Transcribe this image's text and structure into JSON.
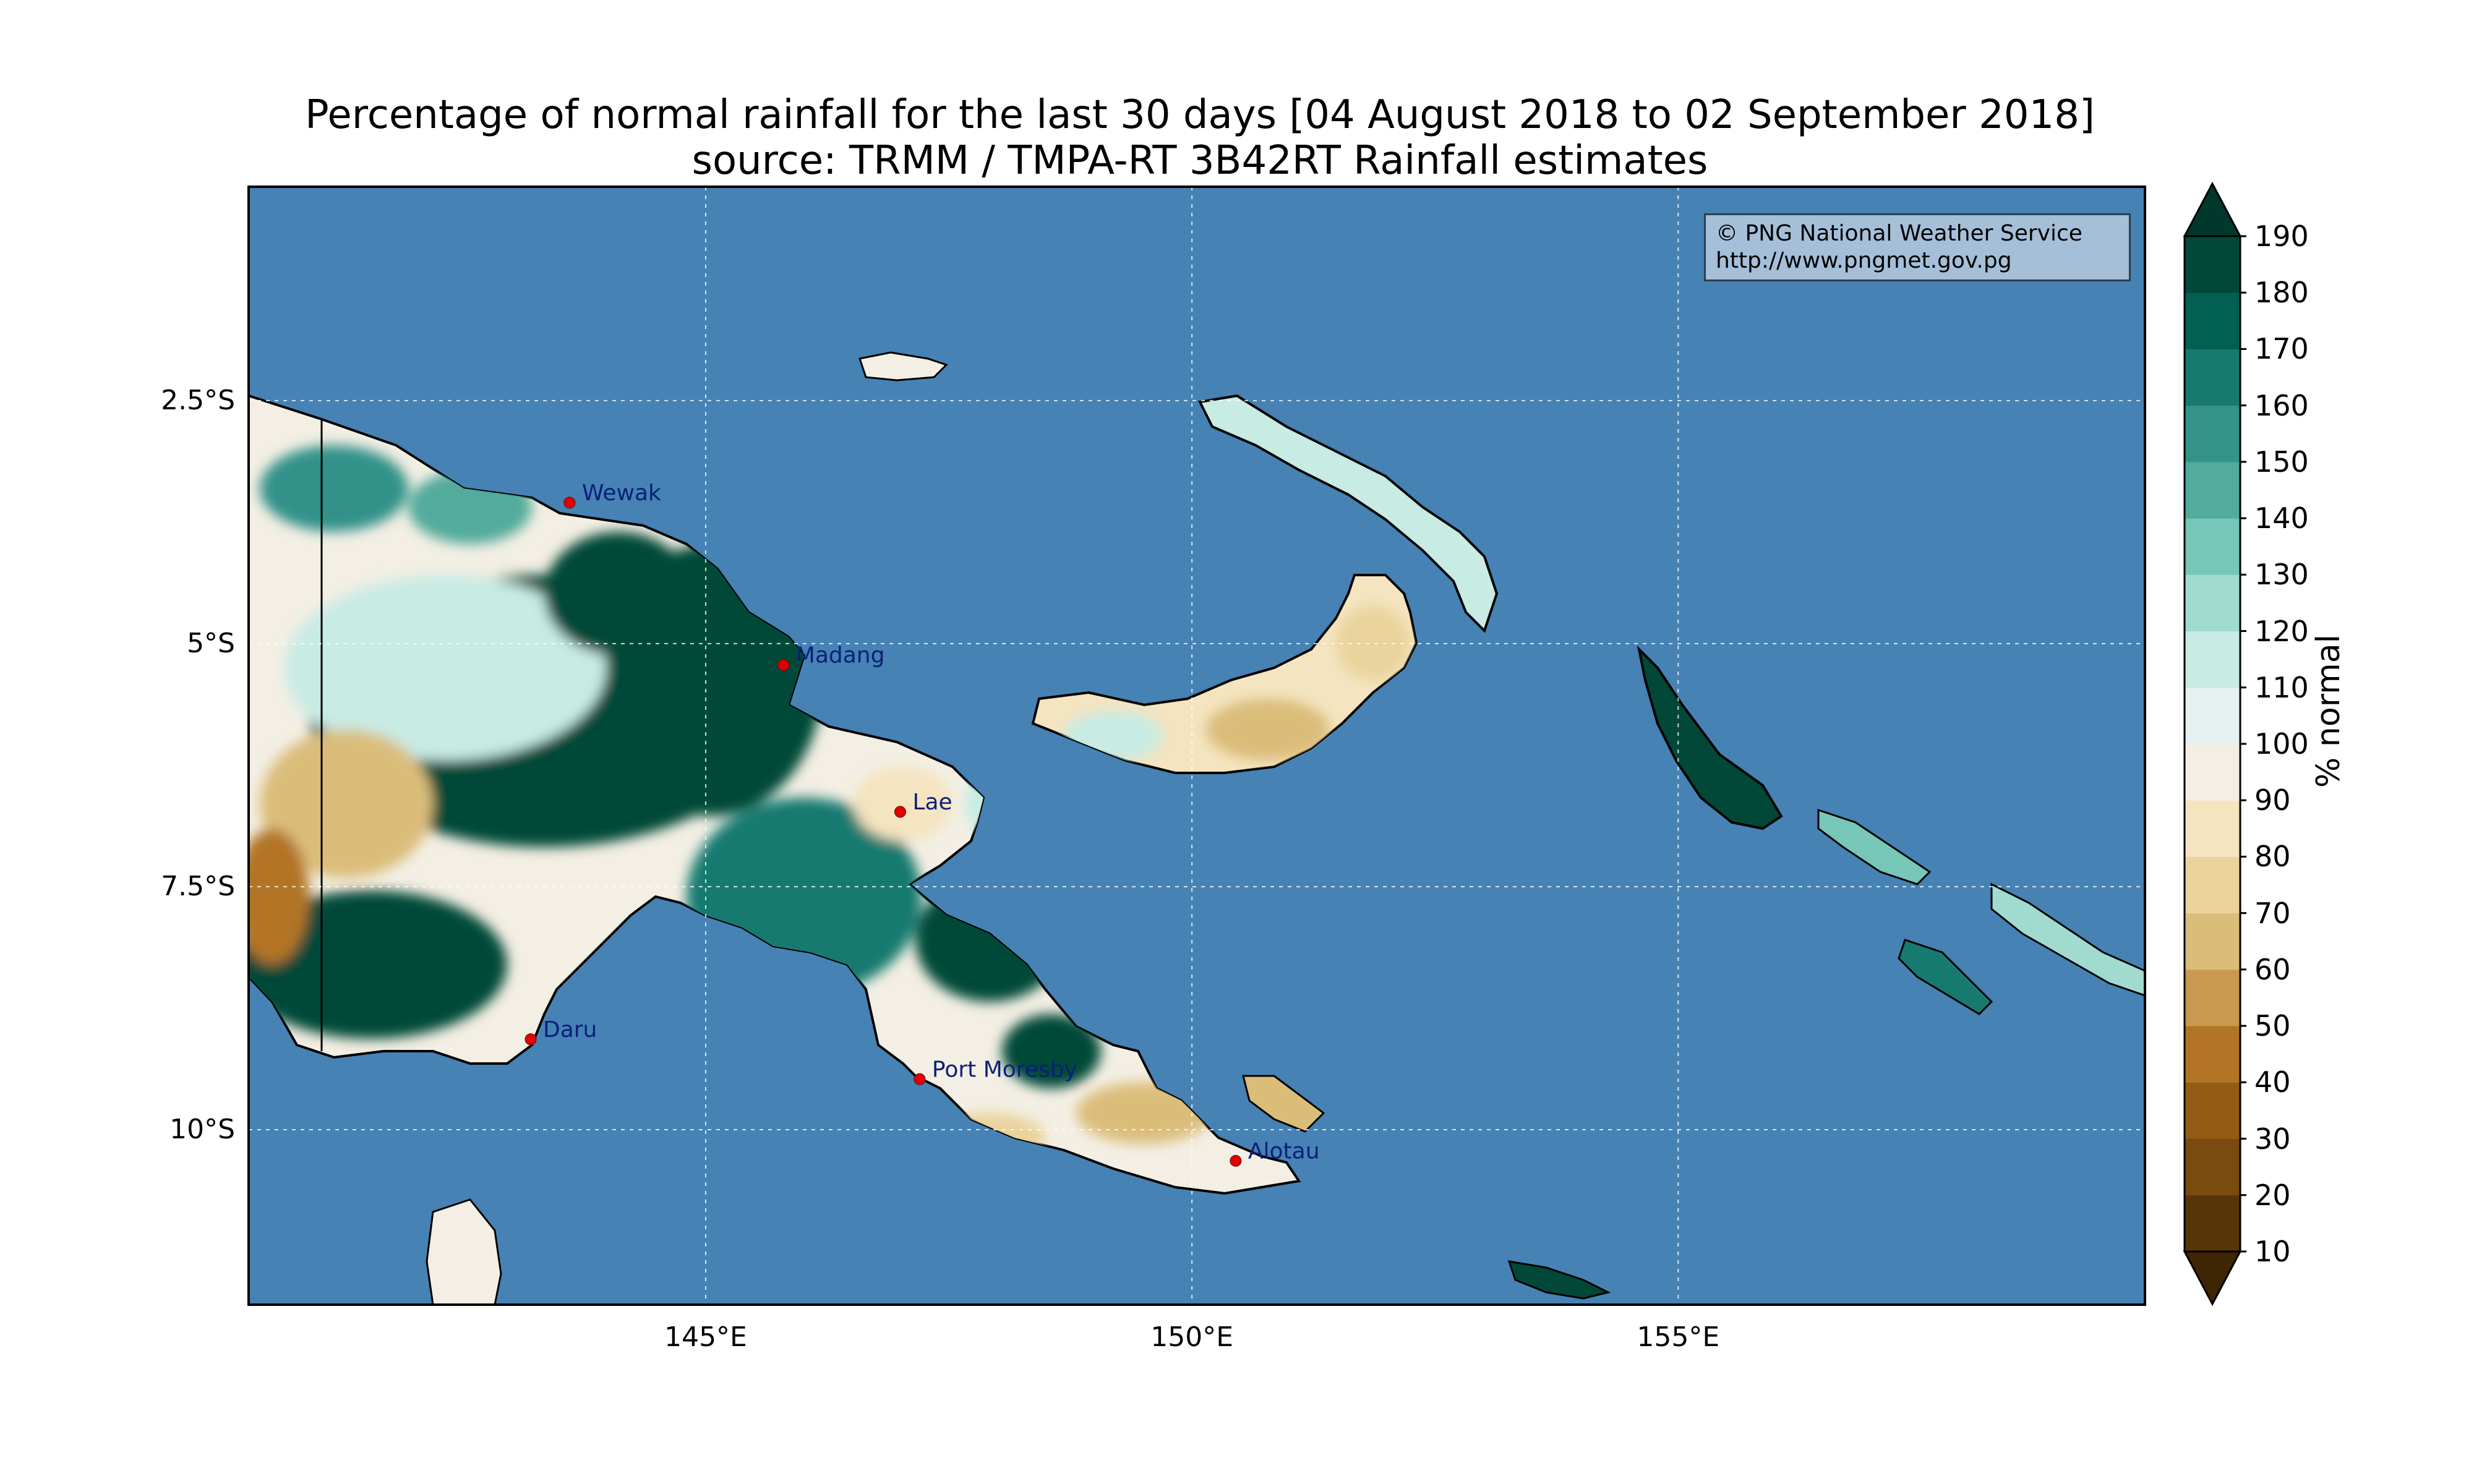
{
  "title": {
    "line1": "Percentage of normal rainfall for the last 30 days [04 August 2018 to 02 September 2018]",
    "line2": "source: TRMM / TMPA-RT 3B42RT Rainfall estimates"
  },
  "credit": {
    "line1": "© PNG National Weather Service",
    "line2": "http://www.pngmet.gov.pg"
  },
  "axes": {
    "lon_ticks": [
      {
        "value": 145,
        "label": "145°E"
      },
      {
        "value": 150,
        "label": "150°E"
      },
      {
        "value": 155,
        "label": "155°E"
      }
    ],
    "lat_ticks": [
      {
        "value": -2.5,
        "label": "2.5°S"
      },
      {
        "value": -5,
        "label": "5°S"
      },
      {
        "value": -7.5,
        "label": "7.5°S"
      },
      {
        "value": -10,
        "label": "10°S"
      }
    ],
    "lon_range": [
      140.3,
      159.8
    ],
    "lat_range": [
      -11.8,
      -0.3
    ]
  },
  "colorbar": {
    "label": "% normal",
    "levels": [
      10,
      20,
      30,
      40,
      50,
      60,
      70,
      80,
      90,
      100,
      110,
      120,
      130,
      140,
      150,
      160,
      170,
      180,
      190
    ],
    "colors": [
      "#583508",
      "#7a4a0e",
      "#935b14",
      "#b27426",
      "#c99950",
      "#dbbd7a",
      "#ead39c",
      "#f4e4c0",
      "#f3efe4",
      "#e6f2ef",
      "#c8ebe4",
      "#a1dbd0",
      "#77c7b8",
      "#52ab9c",
      "#33928a",
      "#167a70",
      "#015f53",
      "#014838"
    ],
    "under_color": "#3e2503",
    "over_color": "#00382c"
  },
  "map": {
    "ocean_color": "#4682b4",
    "cities": [
      {
        "name": "Wewak",
        "lon": 143.6,
        "lat": -3.55
      },
      {
        "name": "Madang",
        "lon": 145.8,
        "lat": -5.22
      },
      {
        "name": "Lae",
        "lon": 147.0,
        "lat": -6.73
      },
      {
        "name": "Daru",
        "lon": 143.2,
        "lat": -9.07
      },
      {
        "name": "Port Moresby",
        "lon": 147.2,
        "lat": -9.48
      },
      {
        "name": "Alotau",
        "lon": 150.45,
        "lat": -10.32
      }
    ]
  }
}
